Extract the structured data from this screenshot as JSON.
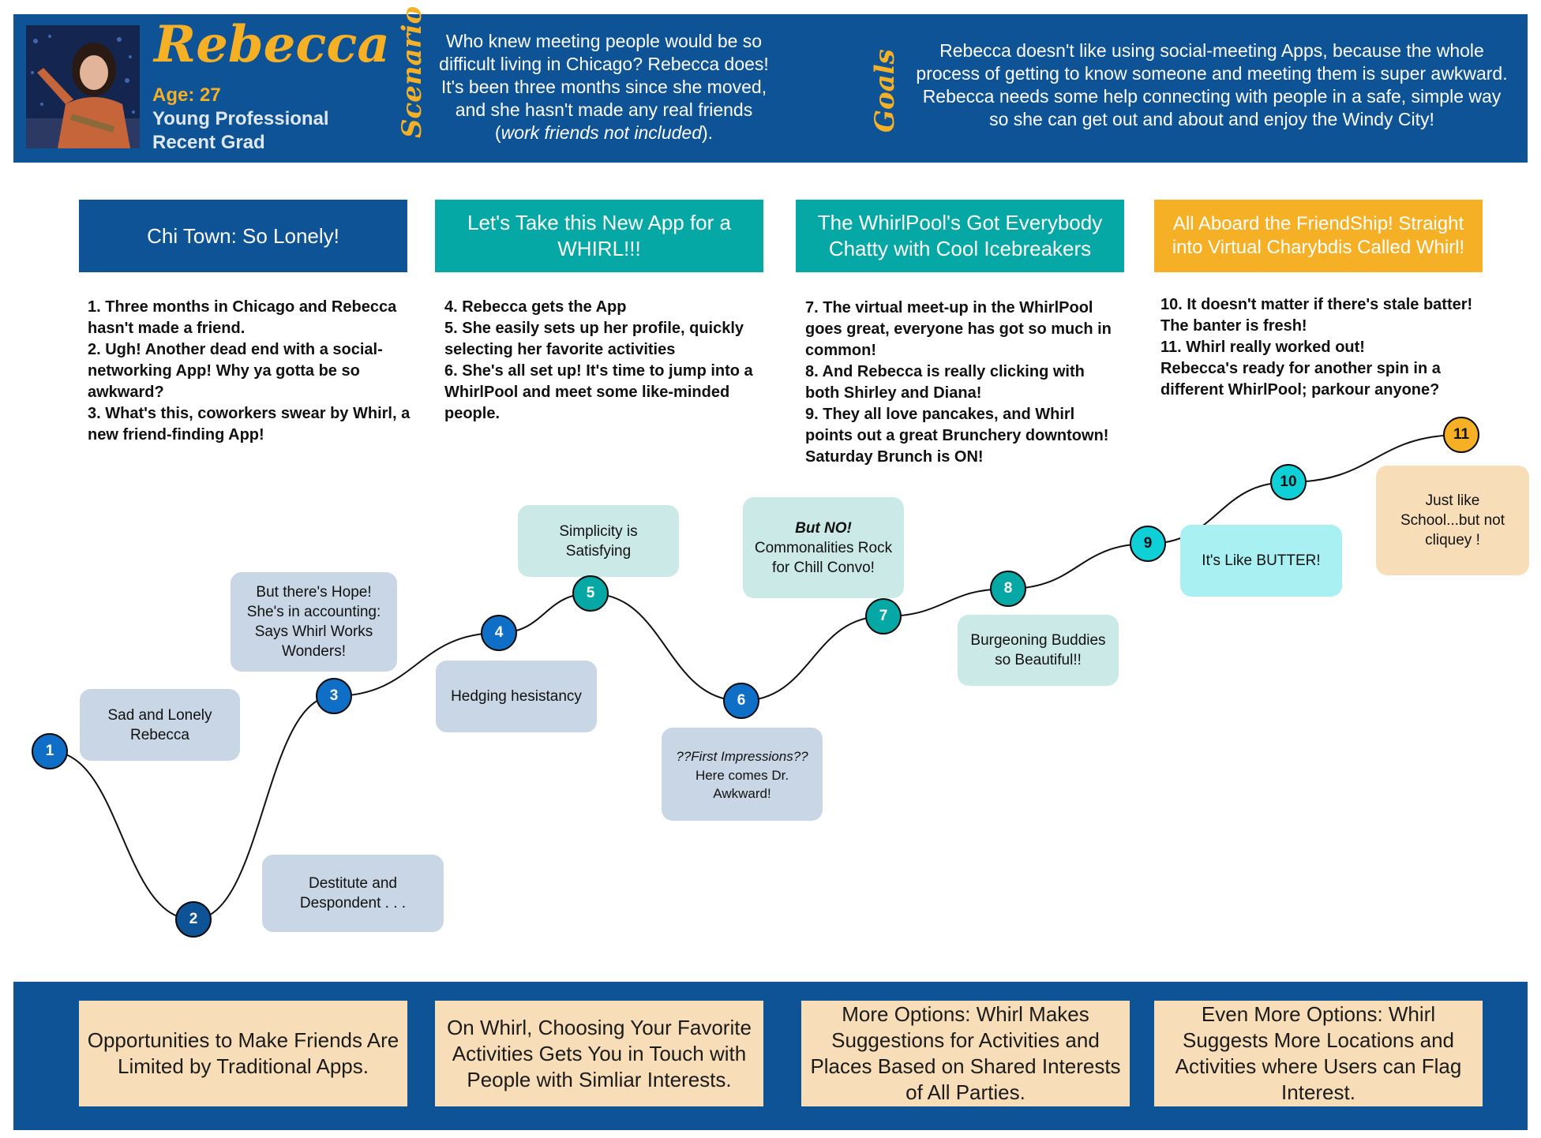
{
  "persona": {
    "name": "Rebecca",
    "age": "Age: 27",
    "role": "Young Professional",
    "status": "Recent Grad",
    "scenario_label": "Scenario",
    "goals_label": "Goals",
    "scenario_before": "Who knew meeting people would be so difficult living in Chicago? Rebecca does! It's been three months since she moved, and she hasn't made any real friends (",
    "scenario_italic": "work friends not included",
    "scenario_after": ").",
    "goals": "Rebecca doesn't like using social-meeting Apps, because the whole process of getting to know someone and meeting them is super awkward. Rebecca needs some help connecting with people in a safe, simple way so she can get out and about and enjoy the Windy City!"
  },
  "phases": [
    {
      "title": "Chi Town: So Lonely!",
      "color": "#0d5395",
      "desc": "1. Three months in Chicago and Rebecca hasn't made a friend.\n2. Ugh! Another dead end with a social-networking App! Why ya gotta be so awkward?\n3. What's this, coworkers swear by Whirl, a new friend-finding App!"
    },
    {
      "title": "Let's Take this New App for a WHIRL!!!",
      "color": "#06a8a5",
      "desc": "4. Rebecca gets the App\n5. She easily sets up her profile, quickly selecting her favorite activities\n6. She's all set up! It's time to jump into a WhirlPool and meet some like-minded people."
    },
    {
      "title": "The WhirlPool's Got Everybody Chatty with Cool Icebreakers",
      "color": "#06a8a5",
      "desc": "7. The virtual meet-up in the WhirlPool goes great, everyone has got so much in common!\n8. And Rebecca is really clicking with both Shirley and Diana!\n9. They all love pancakes, and Whirl points out a great Brunchery downtown! Saturday Brunch is ON!"
    },
    {
      "title": "All Aboard the FriendShip! Straight into Virtual Charybdis Called Whirl!",
      "color": "#f6b026",
      "desc": "10. It doesn't matter if there's stale batter! The banter is fresh!\n11. Whirl really worked out!\nRebecca's ready for another spin in a different WhirlPool; parkour anyone?"
    }
  ],
  "journey": {
    "nodes": [
      {
        "label": "1",
        "color": "#0f6fc6"
      },
      {
        "label": "2",
        "color": "#0d5395"
      },
      {
        "label": "3",
        "color": "#0f6fc6"
      },
      {
        "label": "4",
        "color": "#0f6fc6"
      },
      {
        "label": "5",
        "color": "#06a8a5"
      },
      {
        "label": "6",
        "color": "#0f6fc6"
      },
      {
        "label": "7",
        "color": "#06a8a5"
      },
      {
        "label": "8",
        "color": "#06a8a5"
      },
      {
        "label": "9",
        "color": "#0fd0d6"
      },
      {
        "label": "10",
        "color": "#0fd0d6"
      },
      {
        "label": "11",
        "color": "#f6b026"
      }
    ],
    "bubbles": [
      {
        "text": "Sad and Lonely\nRebecca"
      },
      {
        "text": "Destitute and\nDespondent . . ."
      },
      {
        "text": "But there's Hope!\nShe's in accounting:\nSays Whirl Works\nWonders!"
      },
      {
        "text": "Hedging hesistancy"
      },
      {
        "text": "Simplicity is\nSatisfying"
      },
      {
        "text_italic": "??First Impressions??",
        "text": "Here comes Dr.\nAwkward!"
      },
      {
        "text_bold": "But NO!",
        "text": "Commonalities Rock\nfor Chill Convo!"
      },
      {
        "text": "Burgeoning Buddies\nso Beautiful!!"
      },
      {
        "text": "It's Like BUTTER!"
      },
      {
        "text": "Just like\nSchool...but not\ncliquey !"
      }
    ]
  },
  "opportunities": [
    "Opportunities to Make Friends Are Limited by Traditional Apps.",
    "On Whirl, Choosing Your Favorite Activities Gets You in Touch with People with Simliar Interests.",
    "More Options: Whirl Makes Suggestions for Activities and Places Based on Shared Interests of All Parties.",
    "Even More Options: Whirl Suggests More Locations and Activities where Users can Flag Interest."
  ]
}
